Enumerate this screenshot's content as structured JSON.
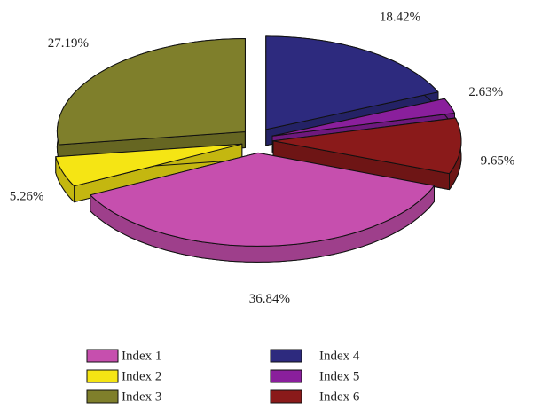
{
  "chart_data": {
    "type": "pie3d",
    "categories": [
      "Index 1",
      "Index 2",
      "Index 3",
      "Index 4",
      "Index 5",
      "Index 6"
    ],
    "values": [
      36.84,
      5.26,
      27.19,
      18.42,
      2.63,
      9.65
    ],
    "value_labels": [
      "36.84%",
      "5.26%",
      "27.19%",
      "18.42%",
      "2.63%",
      "9.65%"
    ],
    "colors": [
      "#c64fae",
      "#f5e514",
      "#7f7f2b",
      "#2d2a7e",
      "#8a1f9c",
      "#8a1a1a"
    ]
  }
}
